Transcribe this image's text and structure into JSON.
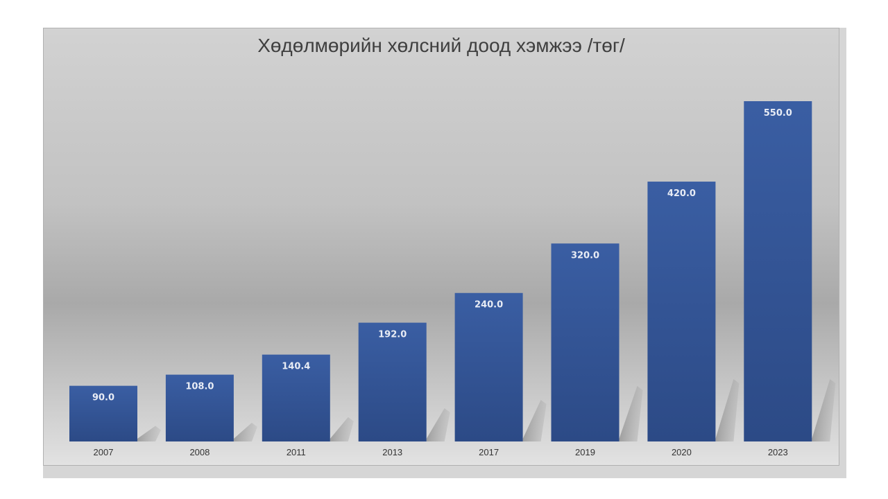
{
  "chart_data": {
    "type": "bar",
    "title": "Хөдөлмөрийн хөлсний доод хэмжээ /төг/",
    "xlabel": "",
    "ylabel": "",
    "categories": [
      "2007",
      "2008",
      "2011",
      "2013",
      "2017",
      "2019",
      "2020",
      "2023"
    ],
    "values": [
      90.0,
      108.0,
      140.4,
      192.0,
      240.0,
      320.0,
      420.0,
      550.0
    ],
    "data_labels": [
      "90.0",
      "108.0",
      "140.4",
      "192.0",
      "240.0",
      "320.0",
      "420.0",
      "550.0"
    ],
    "ylim": [
      0,
      550
    ],
    "grid": false,
    "legend": "none",
    "colors": {
      "bar_top": "#3a5ea3",
      "bar_bottom": "#2c4a86",
      "label": "#e8ecf5",
      "tick": "#333333"
    }
  }
}
